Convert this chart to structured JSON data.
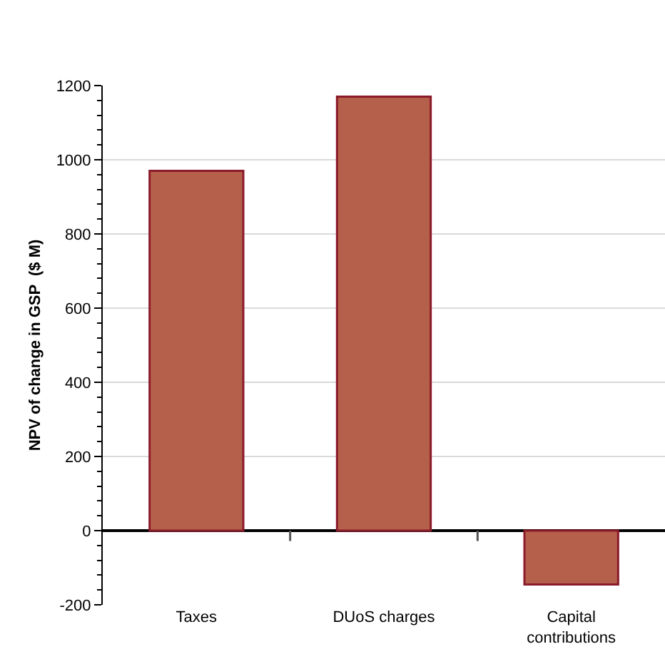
{
  "chart_data": {
    "type": "bar",
    "ylabel": "NPV of change in GSP  ($ M)",
    "categories": [
      "Taxes",
      "DUoS charges",
      "Capital\ncontributions"
    ],
    "values": [
      970,
      1170,
      -145
    ],
    "color": "#b5604a",
    "ylim": [
      -200,
      1200
    ],
    "yticks": [
      -200,
      0,
      200,
      400,
      600,
      800,
      1000,
      1200
    ],
    "grid": "y",
    "legend": false
  }
}
